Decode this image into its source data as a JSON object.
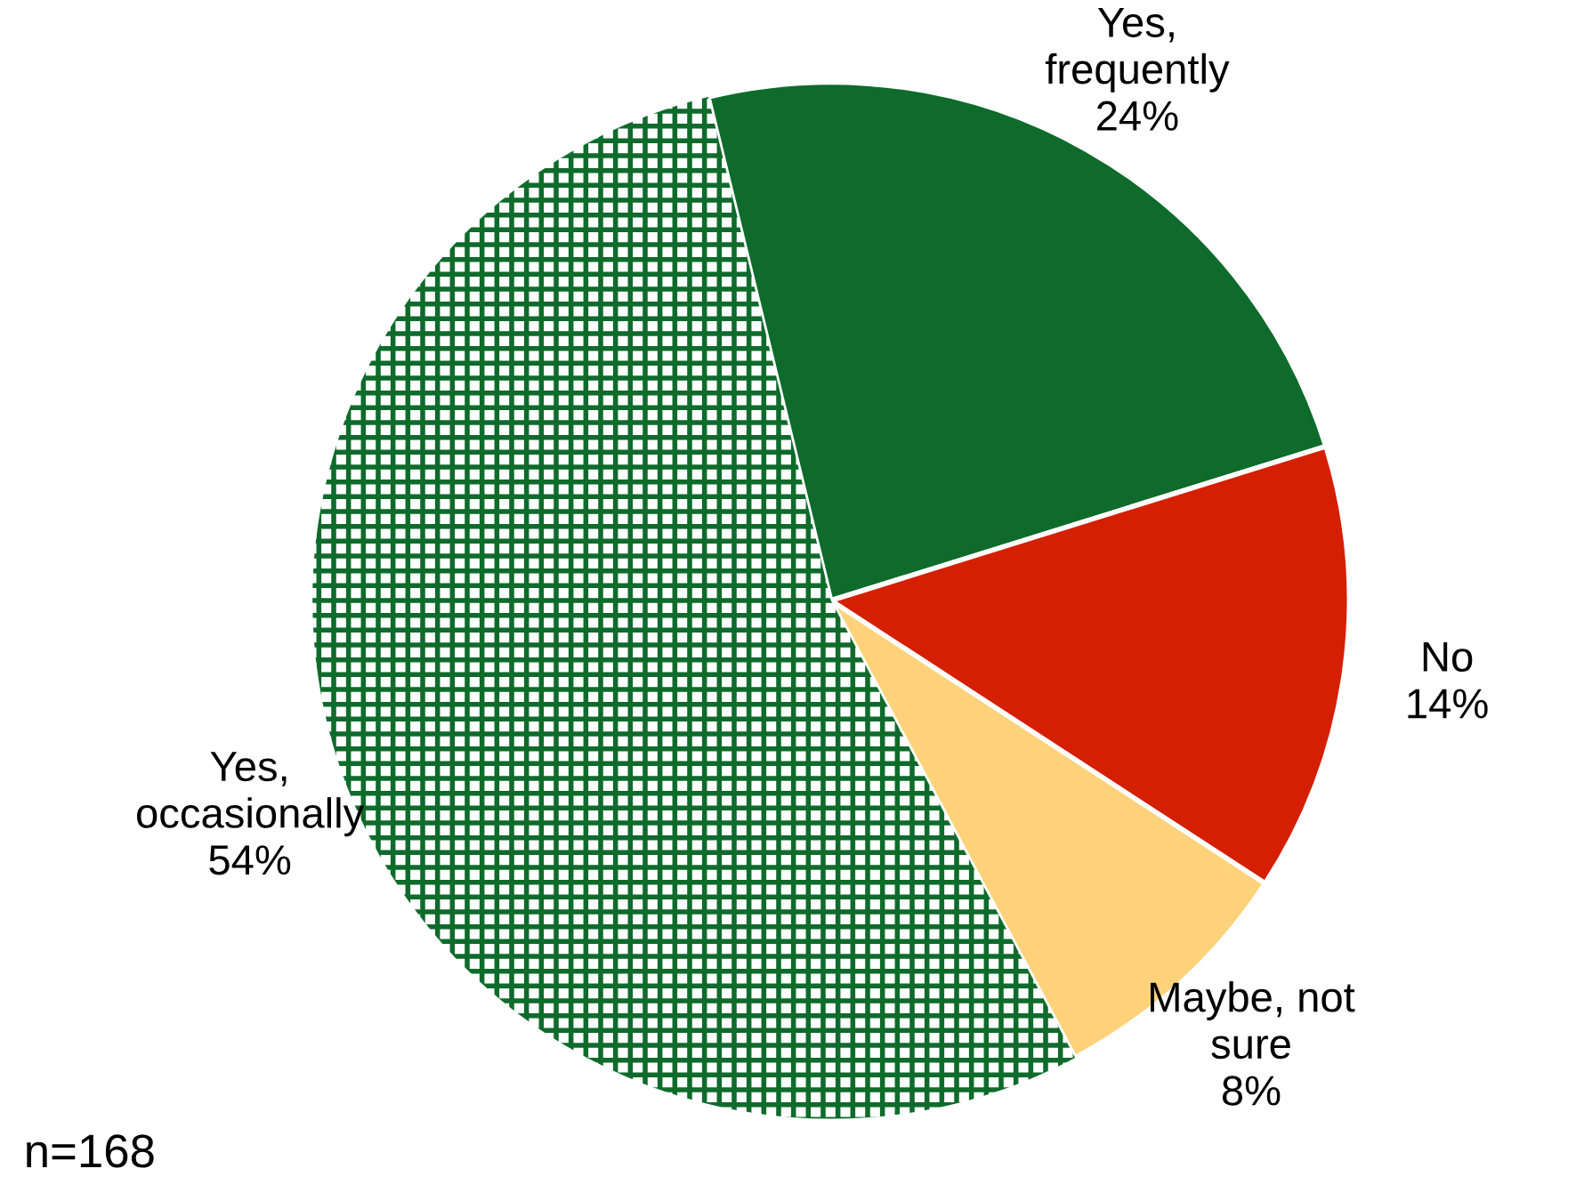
{
  "chart_data": {
    "type": "pie",
    "categories": [
      "Yes,\nfrequently",
      "No",
      "Maybe, not\nsure",
      "Yes,\noccasionally"
    ],
    "values": [
      24,
      14,
      8,
      54
    ],
    "colors": [
      "#0e6b2b",
      "#d41f00",
      "#fdd27a",
      "#0e6b2b"
    ],
    "value_labels": [
      "24%",
      "14%",
      "8%",
      "54%"
    ],
    "annotations": [
      "n=168"
    ]
  }
}
